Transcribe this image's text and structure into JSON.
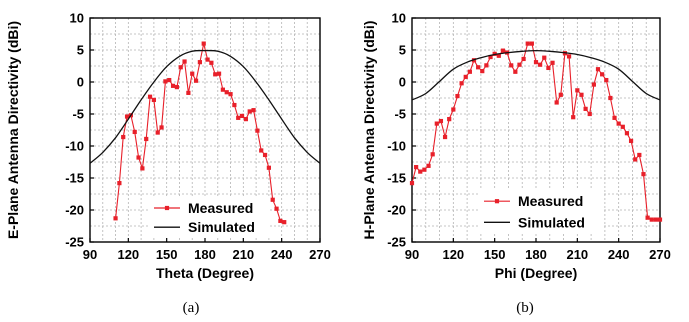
{
  "figure": {
    "legend_entries": {
      "measured": "Measured",
      "simulated": "Simulated"
    },
    "colors": {
      "measured": "#e8202a",
      "simulated": "#111111",
      "grid": "#b4b4b4",
      "axis": "#000000"
    }
  },
  "chart_data": [
    {
      "type": "line",
      "caption": "(a)",
      "xlabel": "Theta (Degree)",
      "ylabel": "E-Plane Antenna Directivity (dBi)",
      "xlim": [
        90,
        270
      ],
      "ylim": [
        -25,
        10
      ],
      "xticks": [
        90,
        120,
        150,
        180,
        210,
        240,
        270
      ],
      "yticks": [
        -25,
        -20,
        -15,
        -10,
        -5,
        0,
        5,
        10
      ],
      "x_minor_step": 10,
      "y_minor_step": 2.5,
      "grid": true,
      "legend_position": "bottom-left",
      "series": [
        {
          "name": "Measured",
          "markers": true,
          "x": [
            110,
            113,
            116,
            119,
            122,
            125,
            128,
            131,
            134,
            137,
            140,
            143,
            146,
            149,
            152,
            155,
            158,
            161,
            164,
            167,
            170,
            173,
            176,
            179,
            182,
            185,
            188,
            191,
            194,
            197,
            200,
            203,
            206,
            209,
            212,
            215,
            218,
            221,
            224,
            227,
            230,
            233,
            236,
            239,
            242
          ],
          "y": [
            -21.3,
            -15.8,
            -8.6,
            -5.4,
            -5.2,
            -7.8,
            -11.8,
            -13.5,
            -8.9,
            -2.3,
            -2.8,
            -7.9,
            -7.1,
            0.1,
            0.3,
            -0.6,
            -0.8,
            2.3,
            3.2,
            -1.7,
            1.3,
            0.2,
            3.1,
            6.0,
            3.5,
            3.0,
            1.2,
            1.3,
            -1.2,
            -1.6,
            -1.9,
            -3.6,
            -5.6,
            -5.3,
            -5.8,
            -4.6,
            -4.4,
            -7.6,
            -10.7,
            -11.4,
            -13.4,
            -18.4,
            -19.8,
            -21.7,
            -21.9
          ]
        },
        {
          "name": "Simulated",
          "markers": false,
          "x": [
            90,
            100,
            110,
            120,
            130,
            140,
            150,
            160,
            170,
            180,
            190,
            200,
            210,
            220,
            230,
            240,
            250,
            260,
            270
          ],
          "y": [
            -12.7,
            -11.0,
            -8.7,
            -5.8,
            -2.8,
            0.0,
            2.4,
            4.0,
            4.8,
            4.9,
            4.8,
            4.0,
            2.4,
            0.0,
            -2.8,
            -5.8,
            -8.7,
            -11.0,
            -12.7
          ]
        }
      ]
    },
    {
      "type": "line",
      "caption": "(b)",
      "xlabel": "Phi (Degree)",
      "ylabel": "H-Plane Antenna Directivity (dBi)",
      "xlim": [
        90,
        270
      ],
      "ylim": [
        -25,
        10
      ],
      "xticks": [
        90,
        120,
        150,
        180,
        210,
        240,
        270
      ],
      "yticks": [
        -25,
        -20,
        -15,
        -10,
        -5,
        0,
        5,
        10
      ],
      "x_minor_step": 10,
      "y_minor_step": 2.5,
      "grid": true,
      "legend_position": "bottom-center",
      "series": [
        {
          "name": "Measured",
          "markers": true,
          "x": [
            90,
            93,
            96,
            99,
            102,
            105,
            108,
            111,
            114,
            117,
            120,
            123,
            126,
            129,
            132,
            135,
            138,
            141,
            144,
            147,
            150,
            153,
            156,
            159,
            162,
            165,
            168,
            171,
            174,
            177,
            180,
            183,
            186,
            189,
            192,
            195,
            198,
            201,
            204,
            207,
            210,
            213,
            216,
            219,
            222,
            225,
            228,
            231,
            234,
            237,
            240,
            243,
            246,
            249,
            252,
            255,
            258,
            261,
            264,
            267,
            270
          ],
          "y": [
            -15.8,
            -13.3,
            -14.0,
            -13.7,
            -13.1,
            -11.3,
            -6.5,
            -6.1,
            -8.6,
            -5.8,
            -4.3,
            -2.2,
            -0.2,
            0.8,
            1.6,
            3.4,
            2.3,
            1.7,
            2.6,
            3.9,
            4.4,
            4.1,
            4.9,
            4.6,
            2.6,
            1.6,
            2.7,
            3.6,
            6.0,
            6.0,
            3.1,
            2.7,
            3.8,
            2.2,
            3.0,
            -3.2,
            -2.0,
            4.5,
            4.0,
            -5.5,
            -1.3,
            -2.0,
            -4.2,
            -5.0,
            -0.4,
            2.0,
            1.2,
            0.3,
            -2.5,
            -5.6,
            -6.5,
            -7.0,
            -8.0,
            -9.2,
            -12.1,
            -11.4,
            -14.4,
            -21.2,
            -21.5,
            -21.5,
            -21.5
          ]
        },
        {
          "name": "Simulated",
          "markers": false,
          "x": [
            90,
            100,
            110,
            120,
            130,
            140,
            150,
            160,
            170,
            180,
            190,
            200,
            210,
            220,
            230,
            240,
            250,
            260,
            270
          ],
          "y": [
            -2.8,
            -1.8,
            0.1,
            2.0,
            3.1,
            3.8,
            4.3,
            4.6,
            4.8,
            4.9,
            4.8,
            4.6,
            4.3,
            3.8,
            3.1,
            2.0,
            0.1,
            -1.8,
            -2.8
          ]
        }
      ]
    }
  ]
}
